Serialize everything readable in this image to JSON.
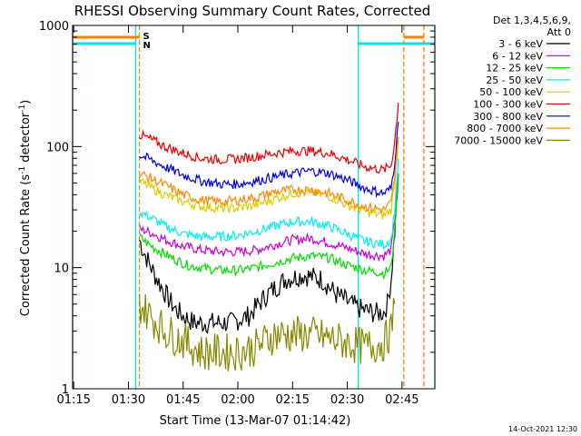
{
  "chart_data": {
    "type": "line",
    "title": "RHESSI Observing Summary Count Rates, Corrected",
    "xlabel": "Start Time (13-Mar-07 01:14:42)",
    "ylabel_main": "Corrected Count Rate (s",
    "ylabel_sup1": "-1",
    "ylabel_mid": " detector",
    "ylabel_sup2": "-1",
    "ylabel_end": ")",
    "y_scale": "log",
    "ylim": [
      1,
      1000
    ],
    "xlim": [
      "01:14:42",
      "02:54:00"
    ],
    "x_ticks": [
      "01:15",
      "01:30",
      "01:45",
      "02:00",
      "02:15",
      "02:30",
      "02:45"
    ],
    "y_ticks": [
      "1",
      "10",
      "100",
      "1000"
    ],
    "legend_header_line1": "Det 1,3,4,5,6,9,",
    "legend_header_line2": "Att 0",
    "legend_placement": "right, outside plot",
    "date_stamp": "14-Oct-2021 12:30",
    "flags": {
      "S": "S",
      "N": "N"
    },
    "night_intervals": [
      [
        "01:14:42",
        "01:32:00"
      ],
      [
        "02:33:00",
        "02:54:00"
      ]
    ],
    "saa_intervals": [
      [
        "01:14:42",
        "01:33:00"
      ],
      [
        "02:45:30",
        "02:51:00"
      ]
    ],
    "series": [
      {
        "name": "3 - 6 keV",
        "color": "#000000",
        "t": [
          "01:33",
          "01:34",
          "01:35",
          "01:37",
          "01:39",
          "01:41",
          "01:43",
          "01:45",
          "01:48",
          "01:52",
          "01:58",
          "02:03",
          "02:08",
          "02:13",
          "02:18",
          "02:23",
          "02:27",
          "02:31",
          "02:34",
          "02:38",
          "02:40",
          "02:41",
          "02:42",
          "02:43",
          "02:44"
        ],
        "v": [
          17,
          14,
          12,
          9,
          7,
          5.5,
          4.5,
          4,
          3.5,
          3.5,
          3.5,
          4,
          6,
          8,
          8.7,
          8,
          6,
          5,
          4.5,
          4.2,
          4.3,
          5,
          8,
          20,
          60
        ]
      },
      {
        "name": "6 - 12 keV",
        "color": "#cc00cc",
        "t": [
          "01:33",
          "01:35",
          "01:37",
          "01:40",
          "01:45",
          "01:50",
          "01:55",
          "02:00",
          "02:05",
          "02:10",
          "02:15",
          "02:20",
          "02:25",
          "02:30",
          "02:35",
          "02:40",
          "02:42",
          "02:43",
          "02:44"
        ],
        "v": [
          21,
          20,
          19,
          17,
          15,
          14,
          13.5,
          13.5,
          14,
          15.5,
          17,
          17.5,
          16,
          14.5,
          13,
          12.5,
          14,
          25,
          60
        ]
      },
      {
        "name": "12 - 25 keV",
        "color": "#00dd00",
        "t": [
          "01:33",
          "01:35",
          "01:38",
          "01:42",
          "01:46",
          "01:50",
          "01:55",
          "02:00",
          "02:05",
          "02:10",
          "02:15",
          "02:20",
          "02:25",
          "02:30",
          "02:35",
          "02:40",
          "02:42",
          "02:43",
          "02:44"
        ],
        "v": [
          18,
          16,
          14,
          12,
          10.5,
          10,
          9.5,
          9.5,
          10,
          11,
          12,
          12.5,
          12,
          10.5,
          9.5,
          9,
          10,
          20,
          60
        ]
      },
      {
        "name": "25 - 50 keV",
        "color": "#00eeee",
        "t": [
          "01:33",
          "01:36",
          "01:40",
          "01:45",
          "01:50",
          "01:55",
          "02:00",
          "02:05",
          "02:10",
          "02:15",
          "02:20",
          "02:25",
          "02:30",
          "02:35",
          "02:40",
          "02:42",
          "02:43",
          "02:44"
        ],
        "v": [
          29,
          26,
          22,
          19,
          18,
          18,
          18.5,
          20,
          22,
          24,
          24,
          22,
          19,
          16.5,
          15.5,
          17,
          30,
          80
        ]
      },
      {
        "name": "50 - 100 keV",
        "color": "#ddcc00",
        "t": [
          "01:33",
          "01:36",
          "01:40",
          "01:45",
          "01:50",
          "01:55",
          "02:00",
          "02:05",
          "02:10",
          "02:15",
          "02:20",
          "02:25",
          "02:30",
          "02:35",
          "02:40",
          "02:42",
          "02:43",
          "02:44"
        ],
        "v": [
          52,
          46,
          40,
          35,
          32,
          31,
          31,
          33,
          37,
          41,
          42,
          39,
          33,
          29,
          27,
          30,
          50,
          120
        ]
      },
      {
        "name": "100 - 300 keV",
        "color": "#ee0000",
        "t": [
          "01:33",
          "01:36",
          "01:40",
          "01:45",
          "01:50",
          "01:55",
          "02:00",
          "02:05",
          "02:10",
          "02:15",
          "02:20",
          "02:25",
          "02:30",
          "02:35",
          "02:40",
          "02:42",
          "02:43",
          "02:44"
        ],
        "v": [
          125,
          115,
          100,
          88,
          80,
          78,
          79,
          83,
          88,
          92,
          92,
          88,
          78,
          68,
          64,
          70,
          110,
          230
        ]
      },
      {
        "name": "300 - 800 keV",
        "color": "#0000dd",
        "t": [
          "01:33",
          "01:36",
          "01:40",
          "01:45",
          "01:50",
          "01:55",
          "02:00",
          "02:05",
          "02:10",
          "02:15",
          "02:20",
          "02:25",
          "02:30",
          "02:35",
          "02:40",
          "02:42",
          "02:43",
          "02:44"
        ],
        "v": [
          85,
          78,
          68,
          58,
          52,
          49,
          49,
          52,
          56,
          60,
          63,
          60,
          53,
          45,
          41,
          45,
          75,
          160
        ]
      },
      {
        "name": "800 - 7000 keV",
        "color": "#ff8800",
        "t": [
          "01:33",
          "01:36",
          "01:40",
          "01:45",
          "01:50",
          "01:55",
          "02:00",
          "02:05",
          "02:10",
          "02:15",
          "02:20",
          "02:25",
          "02:30",
          "02:35",
          "02:40",
          "02:42",
          "02:43",
          "02:44"
        ],
        "v": [
          60,
          55,
          48,
          40,
          36,
          35,
          36,
          38,
          42,
          44,
          44,
          41,
          36,
          32,
          30,
          34,
          55,
          120
        ]
      },
      {
        "name": "7000 - 15000 keV",
        "color": "#888800",
        "t": [
          "01:33",
          "01:36",
          "01:40",
          "01:45",
          "01:50",
          "01:55",
          "02:00",
          "02:05",
          "02:10",
          "02:15",
          "02:20",
          "02:25",
          "02:30",
          "02:35",
          "02:40",
          "02:42",
          "02:43"
        ],
        "v": [
          5,
          4,
          3,
          2.5,
          2,
          2,
          2,
          2.2,
          2.8,
          2.8,
          2.8,
          2.6,
          2.4,
          2.2,
          2.4,
          3,
          5
        ]
      }
    ]
  }
}
